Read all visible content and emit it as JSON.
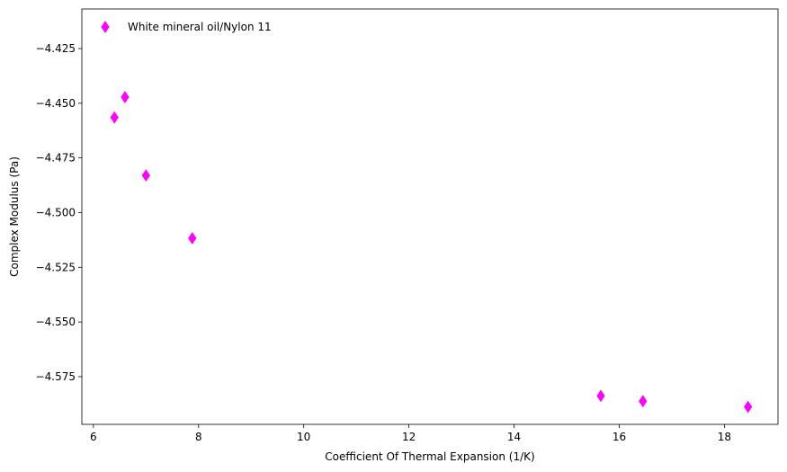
{
  "chart_data": {
    "type": "scatter",
    "title": "",
    "xlabel": "Coefficient Of Thermal Expansion (1/K)",
    "ylabel": "Complex Modulus (Pa)",
    "xlim": [
      5.78,
      19.02
    ],
    "ylim": [
      -4.5968,
      -4.4069
    ],
    "grid": false,
    "legend_position": "top-left",
    "x_ticks": [
      6,
      8,
      10,
      12,
      14,
      16,
      18
    ],
    "x_tick_labels": [
      "6",
      "8",
      "10",
      "12",
      "14",
      "16",
      "18"
    ],
    "y_ticks": [
      -4.425,
      -4.45,
      -4.475,
      -4.5,
      -4.525,
      -4.55,
      -4.575
    ],
    "y_tick_labels": [
      "−4.425",
      "−4.450",
      "−4.475",
      "−4.500",
      "−4.525",
      "−4.550",
      "−4.575"
    ],
    "series": [
      {
        "name": "White mineral oil/Nylon 11",
        "color": "#ff00ff",
        "marker": "thin-diamond",
        "x": [
          6.4,
          6.6,
          7.0,
          7.88,
          15.65,
          16.45,
          18.45
        ],
        "y": [
          -4.4565,
          -4.4472,
          -4.483,
          -4.5117,
          -4.5838,
          -4.5862,
          -4.5888
        ]
      }
    ]
  }
}
